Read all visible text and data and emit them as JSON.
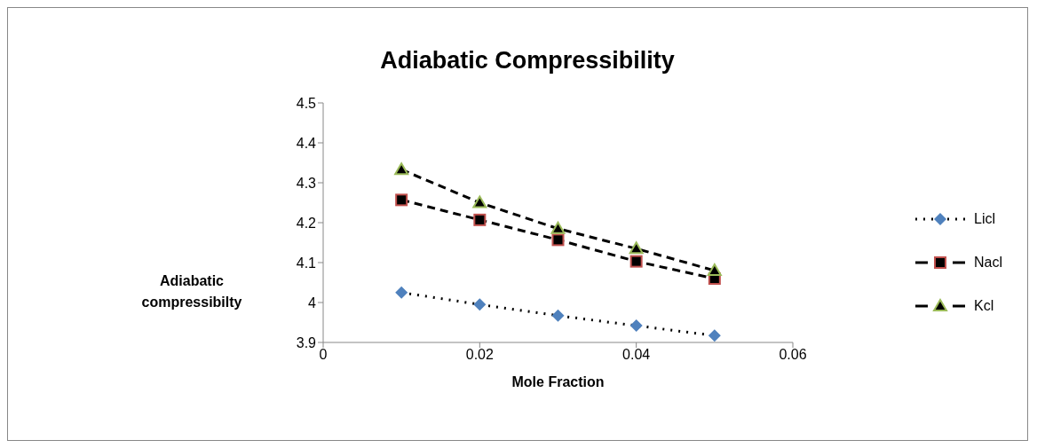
{
  "chart_data": {
    "type": "line",
    "title": "Adiabatic Compressibility",
    "xlabel": "Mole Fraction",
    "ylabel": "Adiabatic compressibilty",
    "x": [
      0.01,
      0.02,
      0.03,
      0.04,
      0.05
    ],
    "series": [
      {
        "name": "Licl",
        "color": "#4f81bd",
        "marker": "diamond",
        "line_style": "dotted",
        "values": [
          4.025,
          3.995,
          3.967,
          3.942,
          3.917
        ]
      },
      {
        "name": "Nacl",
        "color": "#c0504d",
        "marker": "square",
        "line_style": "dashed",
        "values": [
          4.257,
          4.207,
          4.157,
          4.103,
          4.06
        ]
      },
      {
        "name": "Kcl",
        "color": "#9bbb59",
        "marker": "triangle",
        "line_style": "dashed",
        "values": [
          4.333,
          4.25,
          4.185,
          4.135,
          4.08
        ]
      }
    ],
    "xlim": [
      0,
      0.06
    ],
    "xticks": [
      0,
      0.02,
      0.04,
      0.06
    ],
    "ylim": [
      3.9,
      4.5
    ],
    "yticks": [
      3.9,
      4,
      4.1,
      4.2,
      4.3,
      4.4,
      4.5
    ],
    "grid": false,
    "legend": "right"
  }
}
